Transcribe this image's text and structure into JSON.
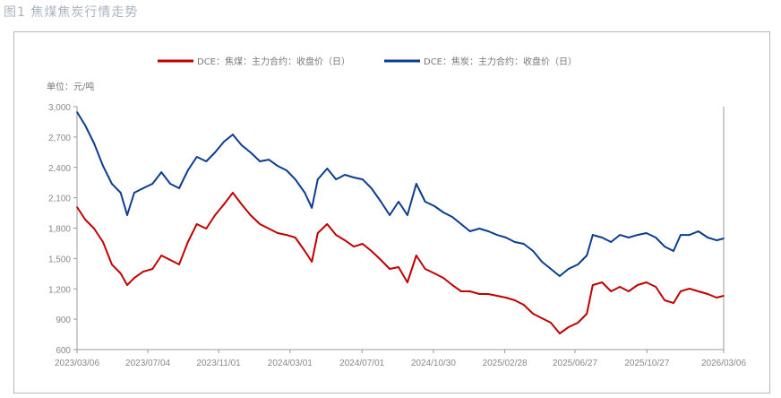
{
  "page_title": "图1 焦煤焦炭行情走势",
  "chart_data": {
    "type": "line",
    "unit_label": "单位：元/吨",
    "ylim": [
      600,
      3000
    ],
    "y_ticks": [
      "3,000",
      "2,700",
      "2,400",
      "2,100",
      "1,800",
      "1,500",
      "1,200",
      "900",
      "600"
    ],
    "y_tick_values": [
      3000,
      2700,
      2400,
      2100,
      1800,
      1500,
      1200,
      900,
      600
    ],
    "x_range": [
      "2023-03-06",
      "2026-03-06"
    ],
    "x_ticks": [
      "2023/03/06",
      "2023/07/04",
      "2023/11/01",
      "2024/03/01",
      "2024/07/01",
      "2024/10/30",
      "2025/02/28",
      "2025/06/27",
      "2025/10/27",
      "2026/03/06"
    ],
    "grid": false,
    "legend_position": "top",
    "x": [
      "2023-03-06",
      "2023-03-20",
      "2023-04-04",
      "2023-04-19",
      "2023-05-04",
      "2023-05-19",
      "2023-05-30",
      "2023-06-11",
      "2023-06-26",
      "2023-07-12",
      "2023-07-27",
      "2023-08-11",
      "2023-08-26",
      "2023-09-10",
      "2023-09-25",
      "2023-10-11",
      "2023-10-26",
      "2023-11-10",
      "2023-11-25",
      "2023-12-10",
      "2023-12-25",
      "2024-01-10",
      "2024-01-25",
      "2024-02-09",
      "2024-02-24",
      "2024-03-10",
      "2024-03-26",
      "2024-04-07",
      "2024-04-17",
      "2024-05-03",
      "2024-05-18",
      "2024-06-02",
      "2024-06-17",
      "2024-07-02",
      "2024-07-17",
      "2024-08-02",
      "2024-08-17",
      "2024-09-01",
      "2024-09-16",
      "2024-10-01",
      "2024-10-16",
      "2024-11-01",
      "2024-11-16",
      "2024-12-01",
      "2024-12-16",
      "2024-12-31",
      "2025-01-16",
      "2025-01-31",
      "2025-02-15",
      "2025-03-02",
      "2025-03-17",
      "2025-04-01",
      "2025-04-17",
      "2025-05-02",
      "2025-05-17",
      "2025-06-01",
      "2025-06-16",
      "2025-07-02",
      "2025-07-17",
      "2025-07-27",
      "2025-08-12",
      "2025-08-27",
      "2025-09-11",
      "2025-09-26",
      "2025-10-11",
      "2025-10-26",
      "2025-11-11",
      "2025-11-26",
      "2025-12-11",
      "2025-12-23",
      "2026-01-07",
      "2026-01-22",
      "2026-02-07",
      "2026-02-22",
      "2026-03-06"
    ],
    "series": [
      {
        "name": "DCE：焦煤：主力合约：收盘价（日）",
        "color": "#c00000",
        "values": [
          2008,
          1884,
          1796,
          1663,
          1441,
          1353,
          1238,
          1308,
          1370,
          1397,
          1530,
          1486,
          1441,
          1663,
          1840,
          1796,
          1928,
          2035,
          2150,
          2035,
          1928,
          1840,
          1796,
          1751,
          1733,
          1707,
          1574,
          1468,
          1751,
          1840,
          1733,
          1680,
          1618,
          1645,
          1574,
          1486,
          1397,
          1415,
          1264,
          1530,
          1397,
          1353,
          1308,
          1238,
          1176,
          1176,
          1149,
          1149,
          1131,
          1114,
          1087,
          1043,
          954,
          910,
          866,
          759,
          821,
          866,
          954,
          1238,
          1264,
          1176,
          1220,
          1176,
          1238,
          1264,
          1220,
          1087,
          1060,
          1176,
          1202,
          1176,
          1149,
          1114,
          1131
        ]
      },
      {
        "name": "DCE：焦炭：主力合约：收盘价（日）",
        "color": "#0b3d91",
        "values": [
          2947,
          2814,
          2637,
          2415,
          2238,
          2150,
          1928,
          2150,
          2194,
          2238,
          2353,
          2238,
          2194,
          2371,
          2504,
          2460,
          2548,
          2654,
          2725,
          2619,
          2548,
          2460,
          2477,
          2415,
          2371,
          2282,
          2150,
          2000,
          2282,
          2389,
          2282,
          2327,
          2300,
          2282,
          2194,
          2061,
          1928,
          2061,
          1928,
          2238,
          2061,
          2017,
          1955,
          1911,
          1840,
          1769,
          1796,
          1769,
          1733,
          1707,
          1663,
          1645,
          1574,
          1468,
          1397,
          1326,
          1397,
          1441,
          1530,
          1733,
          1707,
          1663,
          1733,
          1707,
          1733,
          1751,
          1707,
          1618,
          1574,
          1733,
          1733,
          1769,
          1707,
          1680,
          1698
        ]
      }
    ]
  }
}
